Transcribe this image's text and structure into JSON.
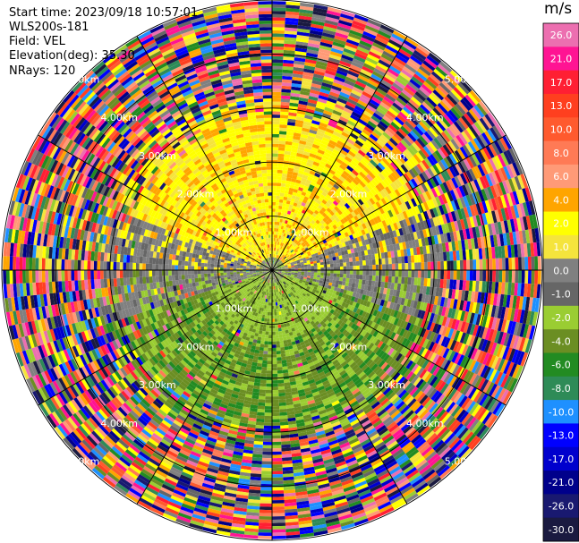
{
  "header": {
    "start_time": "Start time: 2023/09/18 10:57:01",
    "instrument": "WLS200s-181",
    "field": "Field: VEL",
    "elevation": "Elevation(deg): 35.30",
    "nrays": "NRays: 120"
  },
  "colorbar": {
    "unit": "m/s",
    "ticks": [
      "26.0",
      "21.0",
      "17.0",
      "13.0",
      "10.0",
      "8.0",
      "6.0",
      "4.0",
      "2.0",
      "1.0",
      "0.0",
      "-1.0",
      "-2.0",
      "-4.0",
      "-6.0",
      "-8.0",
      "-10.0",
      "-13.0",
      "-17.0",
      "-21.0",
      "-26.0",
      "-30.0"
    ],
    "colors": [
      "#ec6fb0",
      "#ff1493",
      "#ff1f33",
      "#ff3f1f",
      "#ff5a2e",
      "#ff7a55",
      "#ff9a77",
      "#ffa500",
      "#ffff00",
      "#f5e43c",
      "#808080",
      "#666666",
      "#9acd32",
      "#6b8e23",
      "#228b22",
      "#2e8b57",
      "#1e90ff",
      "#0000ff",
      "#0000cd",
      "#00008b",
      "#191970",
      "#1a1a40"
    ]
  },
  "chart_data": {
    "type": "heatmap",
    "subtype": "PPI polar scan",
    "field": "VEL",
    "units": "m/s",
    "nrays": 120,
    "max_range_km": 5.0,
    "range_ring_labels": [
      "1.00km",
      "2.00km",
      "3.00km",
      "4.00km",
      "5.00km"
    ],
    "spoke_angles_deg": [
      0,
      30,
      60,
      90,
      120,
      150,
      180,
      210,
      240,
      270,
      300,
      330
    ],
    "value_range": [
      -30.0,
      26.0
    ],
    "approx_velocity_pattern": {
      "near_north_0_3km": "+1 to +2 m/s (yellow)",
      "near_south_0_3km": "-2 to -6 m/s (green)",
      "transition_east_west": "0 to -1 m/s (grey)",
      "beyond_3km": "noise, random values across full scale"
    }
  }
}
